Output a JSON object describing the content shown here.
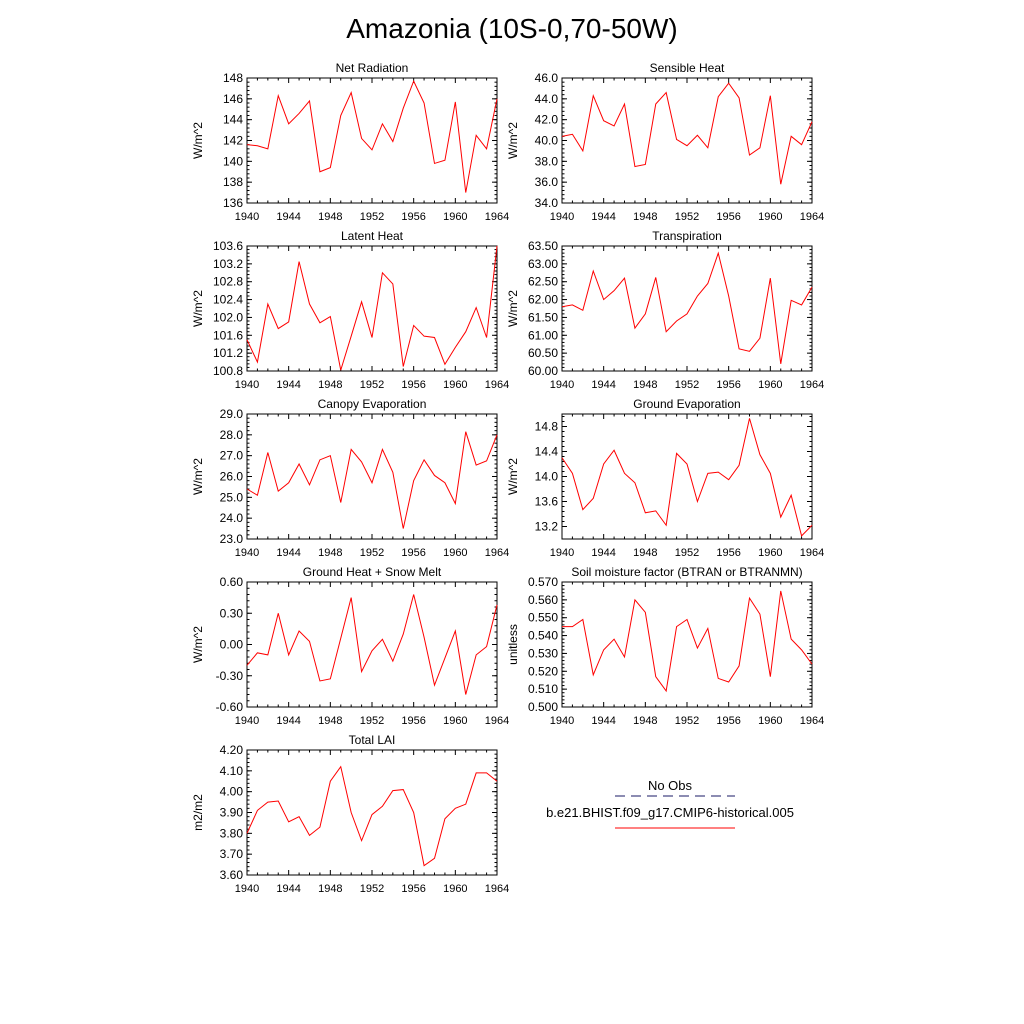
{
  "figure": {
    "title": "Amazonia (10S-0,70-50W)"
  },
  "colors": {
    "series_line": "#ff0000",
    "obs_line": "#1a1a66",
    "axis": "#000000"
  },
  "legend": {
    "obs_label": "No Obs",
    "series_label": "b.e21.BHIST.f09_g17.CMIP6-historical.005"
  },
  "chart_data": [
    {
      "type": "line",
      "title": "Net Radiation",
      "ylabel": "W/m^2",
      "x": [
        1940,
        1941,
        1942,
        1943,
        1944,
        1945,
        1946,
        1947,
        1948,
        1949,
        1950,
        1951,
        1952,
        1953,
        1954,
        1955,
        1956,
        1957,
        1958,
        1959,
        1960,
        1961,
        1962,
        1963,
        1964
      ],
      "values": [
        141.6,
        141.5,
        141.2,
        146.3,
        143.6,
        144.6,
        145.8,
        139.0,
        139.4,
        144.4,
        146.6,
        142.2,
        141.1,
        143.6,
        141.9,
        145.1,
        147.7,
        145.6,
        139.8,
        140.1,
        145.7,
        137.0,
        142.5,
        141.2,
        146.0
      ],
      "xlim": [
        1940,
        1964
      ],
      "ylim": [
        136,
        148
      ],
      "yticks": [
        "136",
        "138",
        "140",
        "142",
        "144",
        "146",
        "148"
      ],
      "xticks": [
        "1940",
        "1944",
        "1948",
        "1952",
        "1956",
        "1960",
        "1964"
      ]
    },
    {
      "type": "line",
      "title": "Sensible Heat",
      "ylabel": "W/m^2",
      "x": [
        1940,
        1941,
        1942,
        1943,
        1944,
        1945,
        1946,
        1947,
        1948,
        1949,
        1950,
        1951,
        1952,
        1953,
        1954,
        1955,
        1956,
        1957,
        1958,
        1959,
        1960,
        1961,
        1962,
        1963,
        1964
      ],
      "values": [
        40.4,
        40.6,
        39.0,
        44.3,
        41.9,
        41.4,
        43.5,
        37.5,
        37.7,
        43.5,
        44.6,
        40.1,
        39.5,
        40.5,
        39.3,
        44.2,
        45.5,
        44.1,
        38.6,
        39.3,
        44.3,
        35.8,
        40.4,
        39.6,
        41.8
      ],
      "xlim": [
        1940,
        1964
      ],
      "ylim": [
        34,
        46
      ],
      "yticks": [
        "34.0",
        "36.0",
        "38.0",
        "40.0",
        "42.0",
        "44.0",
        "46.0"
      ],
      "xticks": [
        "1940",
        "1944",
        "1948",
        "1952",
        "1956",
        "1960",
        "1964"
      ]
    },
    {
      "type": "line",
      "title": "Latent Heat",
      "ylabel": "W/m^2",
      "x": [
        1940,
        1941,
        1942,
        1943,
        1944,
        1945,
        1946,
        1947,
        1948,
        1949,
        1950,
        1951,
        1952,
        1953,
        1954,
        1955,
        1956,
        1957,
        1958,
        1959,
        1960,
        1961,
        1962,
        1963,
        1964
      ],
      "values": [
        101.5,
        101.0,
        102.3,
        101.75,
        101.9,
        103.25,
        102.3,
        101.88,
        102.02,
        100.82,
        101.58,
        102.35,
        101.55,
        103.0,
        102.75,
        100.9,
        101.82,
        101.58,
        101.55,
        100.95,
        101.33,
        101.68,
        102.22,
        101.55,
        103.6
      ],
      "xlim": [
        1940,
        1964
      ],
      "ylim": [
        100.8,
        103.6
      ],
      "yticks": [
        "100.8",
        "101.2",
        "101.6",
        "102.0",
        "102.4",
        "102.8",
        "103.2",
        "103.6"
      ],
      "xticks": [
        "1940",
        "1944",
        "1948",
        "1952",
        "1956",
        "1960",
        "1964"
      ]
    },
    {
      "type": "line",
      "title": "Transpiration",
      "ylabel": "W/m^2",
      "x": [
        1940,
        1941,
        1942,
        1943,
        1944,
        1945,
        1946,
        1947,
        1948,
        1949,
        1950,
        1951,
        1952,
        1953,
        1954,
        1955,
        1956,
        1957,
        1958,
        1959,
        1960,
        1961,
        1962,
        1963,
        1964
      ],
      "values": [
        61.8,
        61.85,
        61.7,
        62.8,
        62.0,
        62.25,
        62.6,
        61.2,
        61.6,
        62.62,
        61.1,
        61.4,
        61.6,
        62.1,
        62.45,
        63.3,
        62.1,
        60.62,
        60.55,
        60.92,
        62.6,
        60.2,
        61.98,
        61.85,
        62.35
      ],
      "xlim": [
        1940,
        1964
      ],
      "ylim": [
        60.0,
        63.5
      ],
      "yticks": [
        "60.00",
        "60.50",
        "61.00",
        "61.50",
        "62.00",
        "62.50",
        "63.00",
        "63.50"
      ],
      "xticks": [
        "1940",
        "1944",
        "1948",
        "1952",
        "1956",
        "1960",
        "1964"
      ]
    },
    {
      "type": "line",
      "title": "Canopy Evaporation",
      "ylabel": "W/m^2",
      "x": [
        1940,
        1941,
        1942,
        1943,
        1944,
        1945,
        1946,
        1947,
        1948,
        1949,
        1950,
        1951,
        1952,
        1953,
        1954,
        1955,
        1956,
        1957,
        1958,
        1959,
        1960,
        1961,
        1962,
        1963,
        1964
      ],
      "values": [
        25.4,
        25.1,
        27.15,
        25.3,
        25.7,
        26.6,
        25.6,
        26.8,
        27.0,
        24.75,
        27.3,
        26.7,
        25.7,
        27.3,
        26.2,
        23.5,
        25.8,
        26.8,
        26.05,
        25.7,
        24.7,
        28.15,
        26.55,
        26.75,
        28.0
      ],
      "xlim": [
        1940,
        1964
      ],
      "ylim": [
        23,
        29
      ],
      "yticks": [
        "23.0",
        "24.0",
        "25.0",
        "26.0",
        "27.0",
        "28.0",
        "29.0"
      ],
      "xticks": [
        "1940",
        "1944",
        "1948",
        "1952",
        "1956",
        "1960",
        "1964"
      ]
    },
    {
      "type": "line",
      "title": "Ground Evaporation",
      "ylabel": "W/m^2",
      "x": [
        1940,
        1941,
        1942,
        1943,
        1944,
        1945,
        1946,
        1947,
        1948,
        1949,
        1950,
        1951,
        1952,
        1953,
        1954,
        1955,
        1956,
        1957,
        1958,
        1959,
        1960,
        1961,
        1962,
        1963,
        1964
      ],
      "values": [
        14.3,
        14.05,
        13.47,
        13.65,
        14.2,
        14.42,
        14.05,
        13.9,
        13.42,
        13.45,
        13.22,
        14.37,
        14.2,
        13.6,
        14.05,
        14.07,
        13.95,
        14.18,
        14.93,
        14.35,
        14.05,
        13.35,
        13.7,
        13.05,
        13.22
      ],
      "xlim": [
        1940,
        1964
      ],
      "ylim": [
        13.0,
        15.0
      ],
      "yticks": [
        "13.2",
        "13.6",
        "14.0",
        "14.4",
        "14.8"
      ],
      "xticks": [
        "1940",
        "1944",
        "1948",
        "1952",
        "1956",
        "1960",
        "1964"
      ]
    },
    {
      "type": "line",
      "title": "Ground Heat + Snow Melt",
      "ylabel": "W/m^2",
      "x": [
        1940,
        1941,
        1942,
        1943,
        1944,
        1945,
        1946,
        1947,
        1948,
        1949,
        1950,
        1951,
        1952,
        1953,
        1954,
        1955,
        1956,
        1957,
        1958,
        1959,
        1960,
        1961,
        1962,
        1963,
        1964
      ],
      "values": [
        -0.2,
        -0.08,
        -0.1,
        0.3,
        -0.1,
        0.13,
        0.03,
        -0.35,
        -0.33,
        0.06,
        0.45,
        -0.26,
        -0.06,
        0.05,
        -0.16,
        0.1,
        0.48,
        0.07,
        -0.39,
        -0.13,
        0.13,
        -0.48,
        -0.1,
        -0.02,
        0.38
      ],
      "xlim": [
        1940,
        1964
      ],
      "ylim": [
        -0.6,
        0.6
      ],
      "yticks": [
        "-0.60",
        "-0.30",
        "0.00",
        "0.30",
        "0.60"
      ],
      "xticks": [
        "1940",
        "1944",
        "1948",
        "1952",
        "1956",
        "1960",
        "1964"
      ]
    },
    {
      "type": "line",
      "title": "Soil moisture factor (BTRAN or BTRANMN)",
      "ylabel": "unitless",
      "x": [
        1940,
        1941,
        1942,
        1943,
        1944,
        1945,
        1946,
        1947,
        1948,
        1949,
        1950,
        1951,
        1952,
        1953,
        1954,
        1955,
        1956,
        1957,
        1958,
        1959,
        1960,
        1961,
        1962,
        1963,
        1964
      ],
      "values": [
        0.545,
        0.545,
        0.549,
        0.518,
        0.532,
        0.538,
        0.528,
        0.56,
        0.553,
        0.517,
        0.509,
        0.545,
        0.549,
        0.533,
        0.544,
        0.516,
        0.514,
        0.523,
        0.561,
        0.552,
        0.517,
        0.565,
        0.538,
        0.532,
        0.524
      ],
      "xlim": [
        1940,
        1964
      ],
      "ylim": [
        0.5,
        0.57
      ],
      "yticks": [
        "0.500",
        "0.510",
        "0.520",
        "0.530",
        "0.540",
        "0.550",
        "0.560",
        "0.570"
      ],
      "xticks": [
        "1940",
        "1944",
        "1948",
        "1952",
        "1956",
        "1960",
        "1964"
      ]
    },
    {
      "type": "line",
      "title": "Total LAI",
      "ylabel": "m2/m2",
      "x": [
        1940,
        1941,
        1942,
        1943,
        1944,
        1945,
        1946,
        1947,
        1948,
        1949,
        1950,
        1951,
        1952,
        1953,
        1954,
        1955,
        1956,
        1957,
        1958,
        1959,
        1960,
        1961,
        1962,
        1963,
        1964
      ],
      "values": [
        3.8,
        3.91,
        3.95,
        3.955,
        3.855,
        3.88,
        3.79,
        3.83,
        4.05,
        4.12,
        3.9,
        3.765,
        3.89,
        3.93,
        4.005,
        4.01,
        3.9,
        3.645,
        3.68,
        3.87,
        3.92,
        3.94,
        4.09,
        4.09,
        4.05
      ],
      "xlim": [
        1940,
        1964
      ],
      "ylim": [
        3.6,
        4.2
      ],
      "yticks": [
        "3.60",
        "3.70",
        "3.80",
        "3.90",
        "4.00",
        "4.10",
        "4.20"
      ],
      "xticks": [
        "1940",
        "1944",
        "1948",
        "1952",
        "1956",
        "1960",
        "1964"
      ]
    }
  ]
}
